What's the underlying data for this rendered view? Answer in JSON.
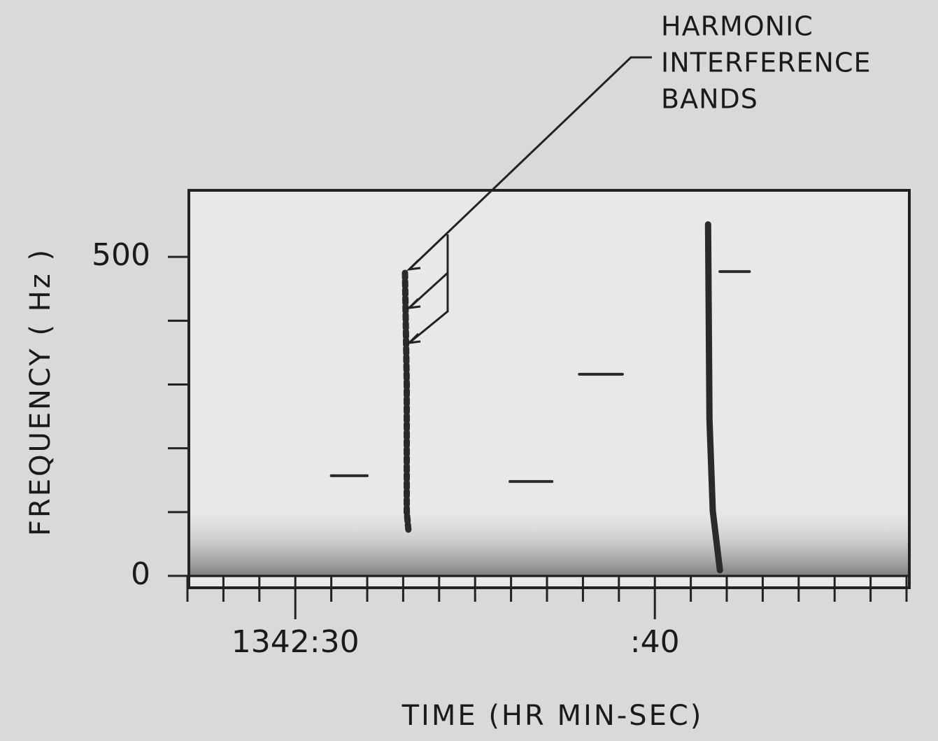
{
  "chart_data": {
    "type": "spectrogram",
    "xlabel": "TIME (HR MIN-SEC)",
    "ylabel": "FREQUENCY ( Hz )",
    "annotation": [
      "HARMONIC",
      "INTERFERENCE",
      "BANDS"
    ],
    "xlim": [
      27,
      47
    ],
    "xticks": [
      {
        "value": 30,
        "label": "1342:30"
      },
      {
        "value": 40,
        "label": ":40"
      }
    ],
    "xminorticks": [
      27,
      28,
      29,
      31,
      32,
      33,
      34,
      35,
      36,
      37,
      38,
      39,
      41,
      42,
      43,
      44,
      45,
      46,
      47
    ],
    "ylim": [
      0,
      600
    ],
    "yticks": [
      0,
      500
    ],
    "yminorticks": [
      100,
      200,
      300,
      400
    ],
    "color": "#2a2a2a",
    "traces": [
      {
        "x": [
          33.05,
          33.1,
          33.1,
          33.15
        ],
        "y": [
          475,
          300,
          100,
          69
        ]
      },
      {
        "x": [
          41.48,
          41.52,
          41.61,
          41.81
        ],
        "y": [
          551,
          245,
          102,
          9
        ]
      },
      {
        "x": [
          31.0,
          32.0
        ],
        "y": [
          157,
          157
        ]
      },
      {
        "x": [
          35.97,
          37.14
        ],
        "y": [
          148,
          148
        ]
      },
      {
        "x": [
          37.9,
          39.1
        ],
        "y": [
          316,
          316
        ]
      },
      {
        "x": [
          41.81,
          42.63
        ],
        "y": [
          477,
          477
        ]
      }
    ]
  }
}
